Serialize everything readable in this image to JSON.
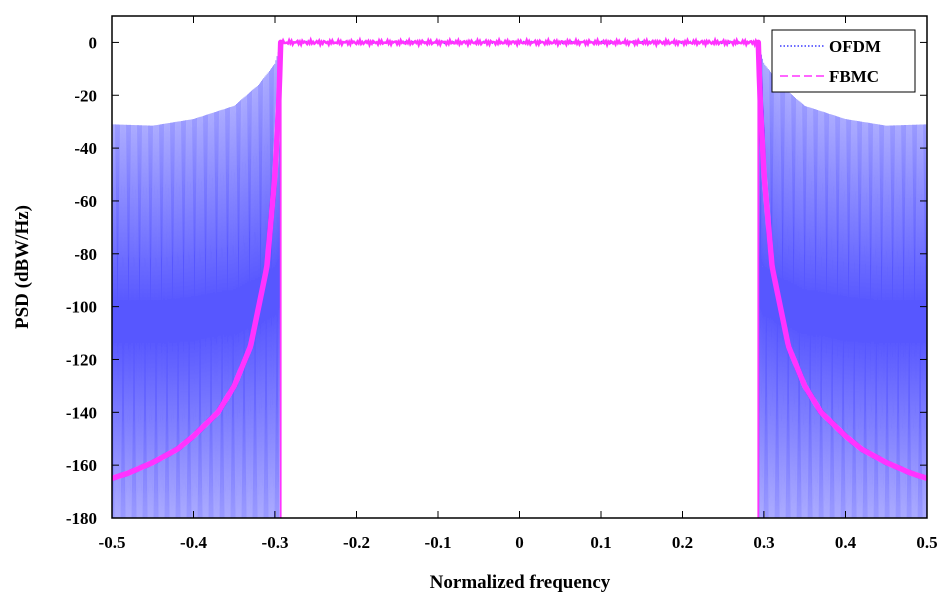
{
  "chart_data": {
    "type": "line",
    "title": "",
    "xlabel": "Normalized frequency",
    "ylabel": "PSD (dBW/Hz)",
    "xlim": [
      -0.5,
      0.5
    ],
    "ylim": [
      -180,
      10
    ],
    "xticks": [
      "-0.5",
      "-0.4",
      "-0.3",
      "-0.2",
      "-0.1",
      "0",
      "0.1",
      "0.2",
      "0.3",
      "0.4",
      "0.5"
    ],
    "yticks": [
      "0",
      "-20",
      "-40",
      "-60",
      "-80",
      "-100",
      "-120",
      "-140",
      "-160",
      "-180"
    ],
    "legend_position": "top-right",
    "grid": false,
    "series": [
      {
        "name": "OFDM",
        "color": "#3a3aff",
        "style": "dotted",
        "passband": {
          "x": [
            -0.293,
            0.293
          ],
          "y": 0
        },
        "envelope": {
          "x": [
            -0.5,
            -0.45,
            -0.4,
            -0.35,
            -0.32,
            -0.3,
            -0.293
          ],
          "y": [
            -31,
            -31.5,
            -29,
            -24,
            -16,
            -8,
            0
          ]
        },
        "floor": -180
      },
      {
        "name": "FBMC",
        "color": "#ff33ff",
        "style": "dashed",
        "passband": {
          "x": [
            -0.293,
            0.293
          ],
          "y": 0
        },
        "rolloff": {
          "x": [
            -0.5,
            -0.48,
            -0.45,
            -0.42,
            -0.4,
            -0.37,
            -0.35,
            -0.33,
            -0.31,
            -0.3,
            -0.295,
            -0.293
          ],
          "y": [
            -165,
            -163,
            -159,
            -154,
            -149,
            -140,
            -130,
            -115,
            -85,
            -50,
            -20,
            0
          ]
        }
      }
    ]
  }
}
